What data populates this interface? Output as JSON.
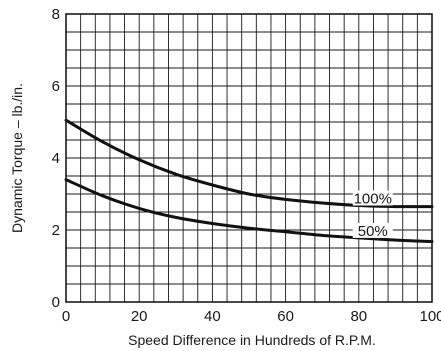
{
  "chart_data": {
    "type": "line",
    "title": "",
    "xlabel": "Speed Difference in Hundreds of R.P.M.",
    "ylabel": "Dynamic Torque – lb./in.",
    "xlim": [
      0,
      100
    ],
    "ylim": [
      0,
      8
    ],
    "x_ticks": [
      "0",
      "20",
      "40",
      "60",
      "80",
      "100"
    ],
    "y_ticks": [
      "0",
      "2",
      "4",
      "6",
      "8"
    ],
    "grid": true,
    "legend": "none",
    "series": [
      {
        "name": "100%",
        "x": [
          0,
          10,
          20,
          30,
          40,
          50,
          60,
          70,
          80,
          90,
          100
        ],
        "values": [
          5.05,
          4.45,
          3.95,
          3.55,
          3.25,
          3.0,
          2.85,
          2.75,
          2.68,
          2.65,
          2.65
        ]
      },
      {
        "name": "50%",
        "x": [
          0,
          10,
          20,
          30,
          40,
          50,
          60,
          70,
          80,
          90,
          100
        ],
        "values": [
          3.4,
          2.95,
          2.6,
          2.35,
          2.18,
          2.05,
          1.95,
          1.85,
          1.78,
          1.72,
          1.68
        ]
      }
    ]
  }
}
